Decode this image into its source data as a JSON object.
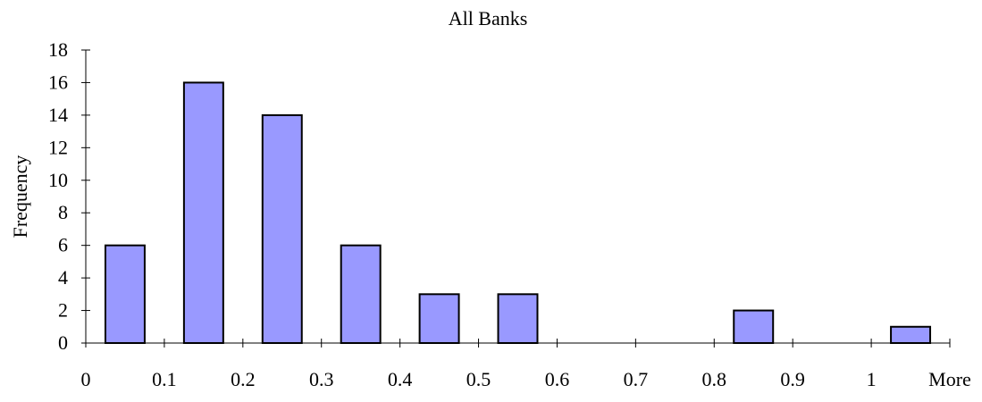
{
  "chart_data": {
    "type": "bar",
    "title": "All Banks",
    "xlabel": "",
    "ylabel": "Frequency",
    "categories": [
      "0",
      "0.1",
      "0.2",
      "0.3",
      "0.4",
      "0.5",
      "0.6",
      "0.7",
      "0.8",
      "0.9",
      "1",
      "More"
    ],
    "values": [
      6,
      16,
      14,
      6,
      3,
      3,
      0,
      0,
      2,
      0,
      1,
      0
    ],
    "ylim": [
      0,
      18
    ],
    "yticks": [
      0,
      2,
      4,
      6,
      8,
      10,
      12,
      14,
      16,
      18
    ],
    "bar_color": "#9999ff",
    "grid": false,
    "legend": "none"
  }
}
